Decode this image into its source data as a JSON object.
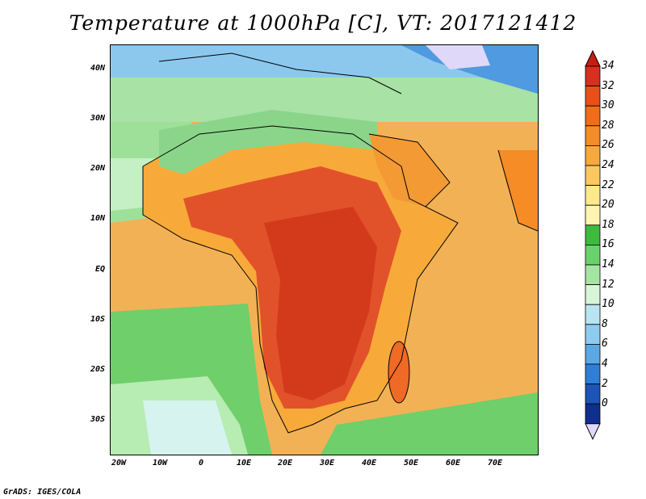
{
  "title": "Temperature at 1000hPa [C], VT: 2017121412",
  "credit": "GrADS: IGES/COLA",
  "lat_labels": [
    "40N",
    "30N",
    "20N",
    "10N",
    "EQ",
    "10S",
    "20S",
    "30S"
  ],
  "lon_labels": [
    "20W",
    "10W",
    "0",
    "10E",
    "20E",
    "30E",
    "40E",
    "50E",
    "60E",
    "70E"
  ],
  "colorbar": {
    "labels": [
      "34",
      "32",
      "30",
      "28",
      "26",
      "24",
      "22",
      "20",
      "18",
      "16",
      "14",
      "12",
      "10",
      "8",
      "6",
      "4",
      "2",
      "0"
    ],
    "colors": [
      "#d7301f",
      "#e8501a",
      "#f06d1a",
      "#f58c25",
      "#f7aa3a",
      "#fbc85e",
      "#fde88a",
      "#fff5b0",
      "#3dbb3d",
      "#6ad26a",
      "#a4e6a0",
      "#d8f5d8",
      "#b9e4f4",
      "#8ecbf0",
      "#5aa8e6",
      "#2f7fd6",
      "#1b55b8",
      "#0f2f8f",
      "#0a1a66"
    ],
    "over_color": "#c81e10",
    "under_color": "#e0d8f8"
  },
  "map_colors": {
    "ocean": "#f2a24a",
    "cool_north": "#6fb6ea",
    "green_band": "#8bd58a",
    "desert": "#f7aa3a",
    "hot_core": "#dc3b1c",
    "south_ocean": "#72cf6e",
    "cold_sea": "#d6f3f0"
  }
}
